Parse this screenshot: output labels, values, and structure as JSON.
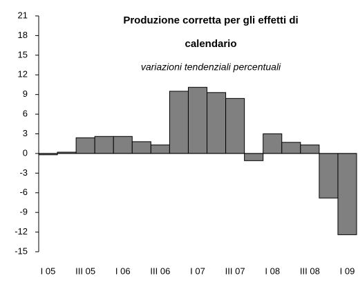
{
  "chart_data": {
    "type": "bar",
    "title": "Produzione corretta per gli effetti di calendario",
    "subtitle": "variazioni tendenziali percentuali",
    "categories": [
      "I 05",
      null,
      "III 05",
      null,
      "I 06",
      null,
      "III 06",
      null,
      "I 07",
      null,
      "III 07",
      null,
      "I 08",
      null,
      "III 08",
      null,
      "I 09"
    ],
    "values": [
      -0.2,
      0.2,
      2.4,
      2.6,
      2.6,
      1.8,
      1.3,
      9.5,
      10.1,
      9.3,
      8.4,
      -1.1,
      3.0,
      1.7,
      1.3,
      -6.8,
      -12.4
    ],
    "color": "#808080",
    "ylim": [
      -15,
      21
    ],
    "yticks": [
      -15,
      -12,
      -9,
      -6,
      -3,
      0,
      3,
      6,
      9,
      12,
      15,
      18,
      21
    ],
    "grid": false
  }
}
